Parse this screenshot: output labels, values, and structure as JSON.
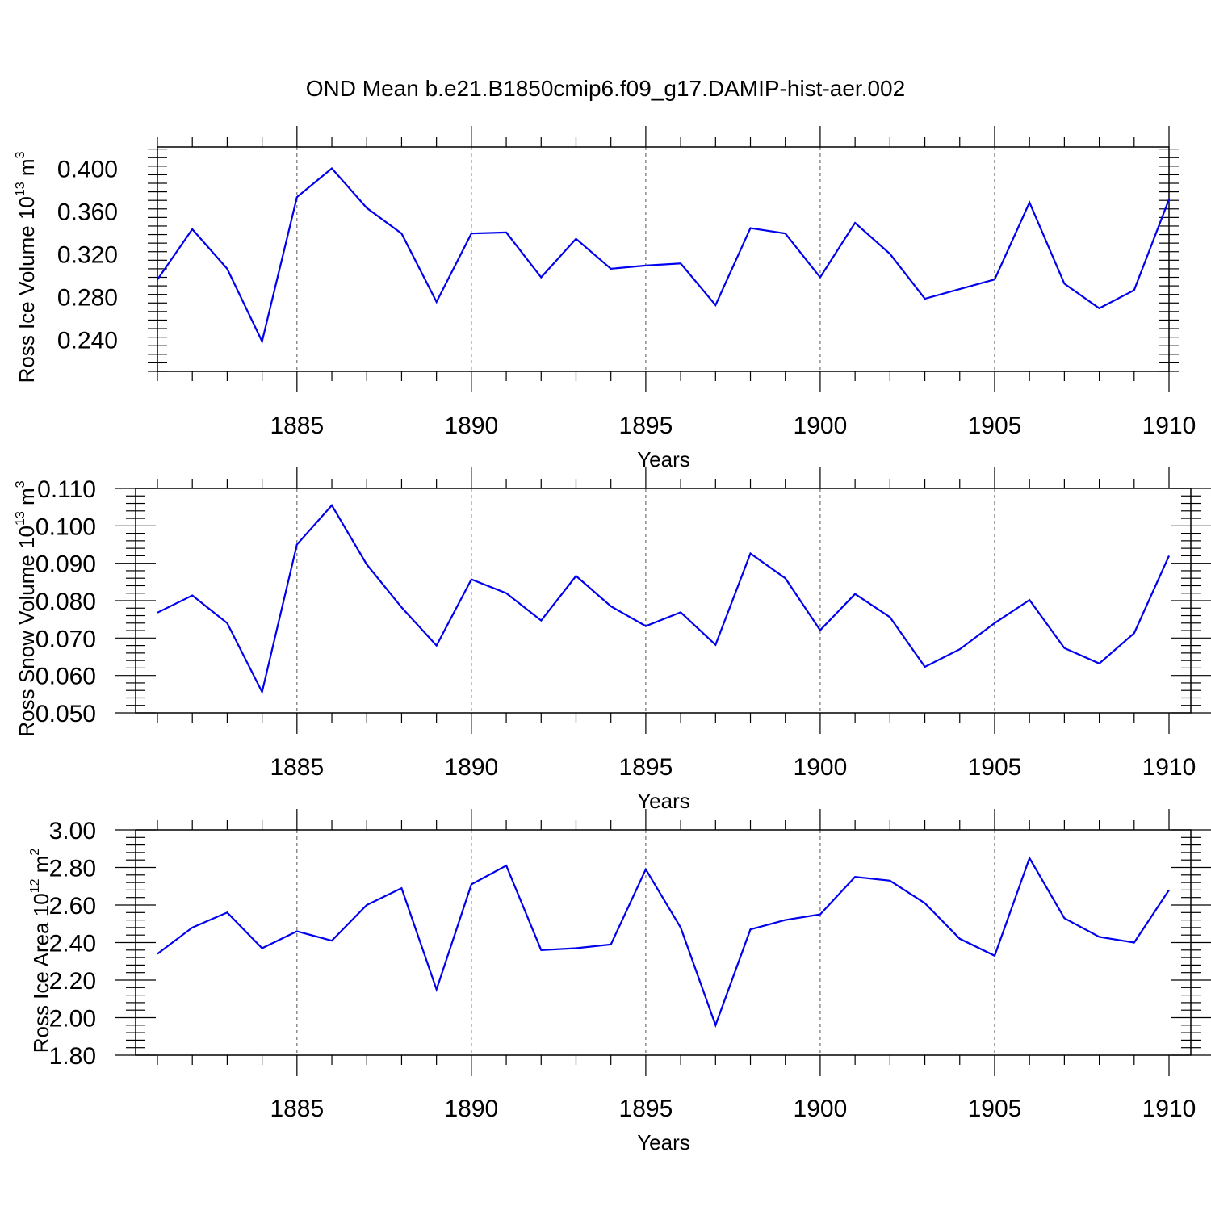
{
  "figure": {
    "title": "OND Mean b.e21.B1850cmip6.f09_g17.DAMIP-hist-aer.002"
  },
  "chart_data": [
    {
      "type": "line",
      "ylabel": {
        "prefix": "Ross Ice Volume 10",
        "exponent": "13",
        "unit": " m",
        "unit_exponent": "3"
      },
      "xlabel": "Years",
      "xlim": [
        1881,
        1910
      ],
      "ylim": [
        0.21,
        0.42
      ],
      "yticks": [
        0.24,
        0.28,
        0.32,
        0.36,
        0.4
      ],
      "yticklabels": [
        "0.240",
        "0.280",
        "0.320",
        "0.360",
        "0.400"
      ],
      "xticks": [
        1885,
        1890,
        1895,
        1900,
        1905,
        1910
      ],
      "xticklabels": [
        "1885",
        "1890",
        "1895",
        "1900",
        "1905",
        "1910"
      ],
      "grid_x": true,
      "color": "#0000ee",
      "x": [
        1881,
        1882,
        1883,
        1884,
        1885,
        1886,
        1887,
        1888,
        1889,
        1890,
        1891,
        1892,
        1893,
        1894,
        1895,
        1896,
        1897,
        1898,
        1899,
        1900,
        1901,
        1902,
        1903,
        1904,
        1905,
        1906,
        1907,
        1908,
        1909,
        1910
      ],
      "values": [
        0.296,
        0.343,
        0.306,
        0.238,
        0.373,
        0.4,
        0.363,
        0.339,
        0.275,
        0.339,
        0.34,
        0.298,
        0.334,
        0.306,
        0.309,
        0.311,
        0.272,
        0.344,
        0.339,
        0.298,
        0.349,
        0.32,
        0.278,
        0.287,
        0.296,
        0.368,
        0.292,
        0.269,
        0.286,
        0.371
      ]
    },
    {
      "type": "line",
      "ylabel": {
        "prefix": "Ross Snow Volume 10",
        "exponent": "13",
        "unit": " m",
        "unit_exponent": "3"
      },
      "xlabel": "Years",
      "xlim": [
        1881,
        1910
      ],
      "ylim": [
        0.05,
        0.11
      ],
      "yticks": [
        0.05,
        0.06,
        0.07,
        0.08,
        0.09,
        0.1,
        0.11
      ],
      "yticklabels": [
        "0.050",
        "0.060",
        "0.070",
        "0.080",
        "0.090",
        "0.100",
        "0.110"
      ],
      "xticks": [
        1885,
        1890,
        1895,
        1900,
        1905,
        1910
      ],
      "xticklabels": [
        "1885",
        "1890",
        "1895",
        "1900",
        "1905",
        "1910"
      ],
      "grid_x": true,
      "color": "#0000ee",
      "x": [
        1881,
        1882,
        1883,
        1884,
        1885,
        1886,
        1887,
        1888,
        1889,
        1890,
        1891,
        1892,
        1893,
        1894,
        1895,
        1896,
        1897,
        1898,
        1899,
        1900,
        1901,
        1902,
        1903,
        1904,
        1905,
        1906,
        1907,
        1908,
        1909,
        1910
      ],
      "values": [
        0.0768,
        0.0814,
        0.074,
        0.0556,
        0.095,
        0.1055,
        0.0897,
        0.0782,
        0.068,
        0.0857,
        0.082,
        0.0747,
        0.0866,
        0.0785,
        0.0732,
        0.0769,
        0.0682,
        0.0926,
        0.086,
        0.0721,
        0.0818,
        0.0756,
        0.0623,
        0.067,
        0.074,
        0.0802,
        0.0673,
        0.0632,
        0.0713,
        0.092
      ]
    },
    {
      "type": "line",
      "ylabel": {
        "prefix": "Ross Ice Area 10",
        "exponent": "12",
        "unit": " m",
        "unit_exponent": "2"
      },
      "xlabel": "Years",
      "xlim": [
        1881,
        1910
      ],
      "ylim": [
        1.8,
        3.0
      ],
      "yticks": [
        1.8,
        2.0,
        2.2,
        2.4,
        2.6,
        2.8,
        3.0
      ],
      "yticklabels": [
        "1.80",
        "2.00",
        "2.20",
        "2.40",
        "2.60",
        "2.80",
        "3.00"
      ],
      "xticks": [
        1885,
        1890,
        1895,
        1900,
        1905,
        1910
      ],
      "xticklabels": [
        "1885",
        "1890",
        "1895",
        "1900",
        "1905",
        "1910"
      ],
      "grid_x": true,
      "color": "#0000ee",
      "x": [
        1881,
        1882,
        1883,
        1884,
        1885,
        1886,
        1887,
        1888,
        1889,
        1890,
        1891,
        1892,
        1893,
        1894,
        1895,
        1896,
        1897,
        1898,
        1899,
        1900,
        1901,
        1902,
        1903,
        1904,
        1905,
        1906,
        1907,
        1908,
        1909,
        1910
      ],
      "values": [
        2.34,
        2.48,
        2.56,
        2.37,
        2.46,
        2.41,
        2.6,
        2.69,
        2.15,
        2.71,
        2.81,
        2.36,
        2.37,
        2.39,
        2.79,
        2.48,
        1.96,
        2.47,
        2.52,
        2.55,
        2.75,
        2.73,
        2.61,
        2.42,
        2.33,
        2.85,
        2.53,
        2.43,
        2.4,
        2.68
      ]
    }
  ]
}
